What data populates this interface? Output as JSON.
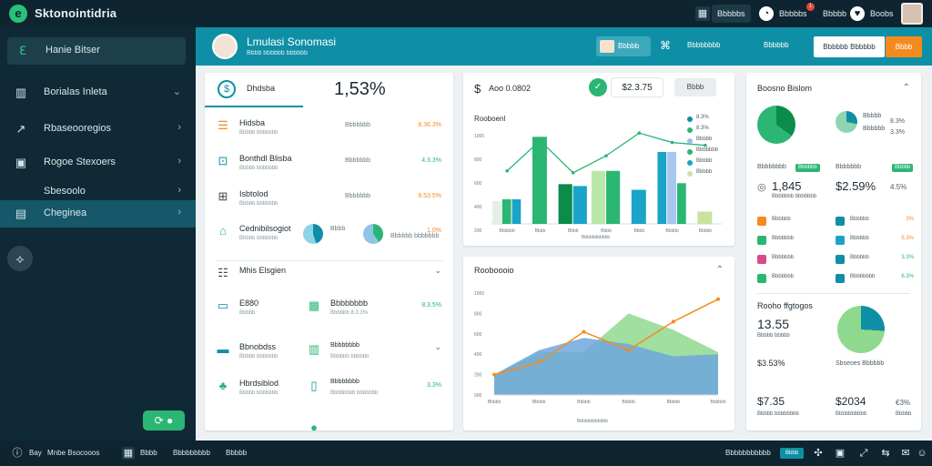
{
  "app": {
    "title": "Sktonointidria",
    "logo_glyph": "e"
  },
  "topbar": {
    "chip1": "Bbbbbs",
    "chip2": "Bbbbbs",
    "link": "Bbbbb",
    "link2": "Boobs",
    "badge": "1"
  },
  "sidebar": {
    "items": [
      {
        "label": "Hanie Bitser"
      },
      {
        "label": "Borialas Inleta"
      },
      {
        "label": "Rbaseooregios"
      },
      {
        "label": "Rogoe Stexoers"
      },
      {
        "label": "Sbesoolo"
      },
      {
        "label": "Cheginea"
      }
    ]
  },
  "header": {
    "title": "Lmulasi Sonomasi",
    "subtitle": "Bbbb bbbbbb bbbbbb",
    "chip": "Bbbbb",
    "link1": "Bbbbbbbb",
    "link2": "Bbbbbb",
    "btn1": "Bbbbbb Bbbbbb",
    "btn2": "Bbbb"
  },
  "cardA": {
    "tab_label": "Dhdsba",
    "big_value": "1,53%",
    "rows": [
      {
        "title": "Hidsba",
        "sub": "Bbbbb bbbbbbb",
        "mid": "Bbbbbbb",
        "value": "8.36.3%"
      },
      {
        "title": "Bonthdl Blisba",
        "sub": "Bbbbb bbbbbbb",
        "mid": "Bbbbbbb",
        "value": "4.3.3%"
      },
      {
        "title": "Isbtolod",
        "sub": "Bbbbb bbbbbbb",
        "mid": "Bbbbbbb",
        "value": "8.53.5%"
      },
      {
        "title": "Cednibilsogiot",
        "sub": "Bbbbb bbbbbbb",
        "mid": "Bbbb",
        "value": "1.0%"
      }
    ],
    "pie_labels": [
      "Bbbb",
      "Bbbbbb bbbbbbb"
    ],
    "section_title": "Mhis Elsgien",
    "rows2": [
      {
        "title": "E880",
        "sub": "Bbbbb",
        "mid": "Bbbbbbbb",
        "midsub": "Bbbbbb 8.3.3%",
        "value": "8.3.5%"
      },
      {
        "title": "Bbnobdss",
        "sub": "Bbbbb bbbbbbb",
        "mid": "Bbbbbbbb",
        "midsub": "Bbbbbb bbbbbb",
        "value": ""
      },
      {
        "title": "Hbrdsiblod",
        "sub": "Bbbbb bbbbbbb",
        "mid": "Bbbbbbbb",
        "midsub": "Bbbbbbbb bbbbbbb",
        "value": "3.3%"
      }
    ]
  },
  "cardB": {
    "title": "Aoo 0.0802",
    "value_box": "$2.3.75",
    "btn": "Bbbb",
    "chart_title": "Rooboenl",
    "xlabel": "Bbbbbbbbbbb",
    "legend": [
      "8.3%",
      "8.3%",
      "Bbbbb",
      "Bbbbbbb",
      "Bbbbb",
      "Bbbbb"
    ],
    "legend_colors": [
      "#0f8fa6",
      "#2bb673",
      "#a7b8e8",
      "#2bb673",
      "#1aa4c8",
      "#cfe0a8"
    ]
  },
  "chart_data": [
    {
      "type": "bar",
      "title": "Rooboenl",
      "xlabel": "Bbbbbbbbbbb",
      "ylabel": "",
      "x_ticks": [
        "Bbbbbb",
        "Bbbb",
        "Bbbb",
        "Bbbb",
        "Bbbb",
        "Bbbbb",
        "Bbbbb"
      ],
      "y_ticks": [
        "1000",
        "800",
        "600",
        "400",
        "200"
      ],
      "ylim": [
        0,
        1000
      ],
      "groups": [
        {
          "bars": [
            {
              "color": "#e6efe6",
              "value": 240
            },
            {
              "color": "#2bb673",
              "value": 260
            },
            {
              "color": "#1aa4c8",
              "value": 260
            }
          ]
        },
        {
          "bars": [
            {
              "color": "#2bb673",
              "value": 920
            }
          ]
        },
        {
          "bars": [
            {
              "color": "#0c8c4a",
              "value": 420
            },
            {
              "color": "#1aa4c8",
              "value": 400
            }
          ]
        },
        {
          "bars": [
            {
              "color": "#b9e7a7",
              "value": 560
            },
            {
              "color": "#2bb673",
              "value": 560
            }
          ]
        },
        {
          "bars": [
            {
              "color": "#1aa4c8",
              "value": 360
            }
          ]
        },
        {
          "bars": [
            {
              "color": "#1aa4c8",
              "value": 760
            },
            {
              "color": "#a7c6f0",
              "value": 760
            },
            {
              "color": "#2bb673",
              "value": 430
            }
          ]
        },
        {
          "bars": [
            {
              "color": "#c8e39c",
              "value": 130
            }
          ]
        }
      ],
      "line": {
        "color": "#2bb673",
        "values": [
          560,
          880,
          540,
          720,
          960,
          860,
          830
        ]
      },
      "grid": false
    },
    {
      "type": "area",
      "title": "Rooboooio",
      "xlabel": "Bbbbbbbbbbbb",
      "x_ticks": [
        "Bbbbb",
        "Bbbbb",
        "Bbbbb",
        "Bbbbb",
        "Bbbbb",
        "Bbbbbb"
      ],
      "y_ticks": [
        "1000",
        "800",
        "600",
        "400",
        "200",
        "000"
      ],
      "ylim": [
        0,
        1000
      ],
      "series": [
        {
          "type": "area",
          "color": "#8fd98e",
          "values": [
            200,
            420,
            420,
            800,
            640,
            420
          ]
        },
        {
          "type": "area",
          "color": "#6fa7dd",
          "values": [
            200,
            440,
            560,
            500,
            380,
            400
          ]
        },
        {
          "type": "line",
          "color": "#f58b1f",
          "values": [
            200,
            320,
            620,
            440,
            720,
            940
          ]
        }
      ],
      "grid": false
    }
  ],
  "cardC": {
    "title": "Rooboooio",
    "xlabel": "Bbbbbbbbbbbb"
  },
  "cardD": {
    "title": "Boosno Bislom",
    "legend1": [
      "Bbbbb",
      "Bbbbbb"
    ],
    "legend1_values": [
      "8.3%",
      "3.3%"
    ],
    "badges": [
      "Bbbbbbbb",
      "Bbbbbbb",
      "Bbbbbb",
      "Bbbb"
    ],
    "badge_labels": [
      "Bbbbbb",
      "Bbbbb"
    ],
    "big1": "1,845",
    "big2": "$2.59%",
    "big3": "4.5%",
    "sub1": "Bbbbbbb bbbbbbb",
    "rows": [
      {
        "label": "Bbbbbb",
        "label2": "Bbbbbb",
        "pct": "3%"
      },
      {
        "label": "Bbbbbbb",
        "label2": "Bbbbbb",
        "pct": "5.3%"
      },
      {
        "label": "Bbbbbbb",
        "label2": "Bbbbbb",
        "pct": "3.3%"
      },
      {
        "label": "Bbbbbbb",
        "label2": "Bbbbbbbb",
        "pct": "6.3%"
      }
    ],
    "section_title": "Rooho ffgtogos",
    "big4": "13.55",
    "sub4": "Bbbbb bbbbb",
    "val5": "$3.53%",
    "val5b": "Sbseoes Bbbbbb",
    "val6": "$7.35",
    "val6b": "$2034",
    "val6c": "€3%",
    "sub6": "Bbbbb bbbbbbbb",
    "sub6b": "Bbbbbbbbbb",
    "sub6c": "Bbbbb"
  },
  "bottombar": {
    "items": [
      "Bay",
      "Mnbe Bsocooos",
      "Bbbb",
      "Bbbbbbbbb",
      "Bbbbb"
    ],
    "right_label": "Bbbbbbbbbbb",
    "chip": "Bbbb"
  }
}
